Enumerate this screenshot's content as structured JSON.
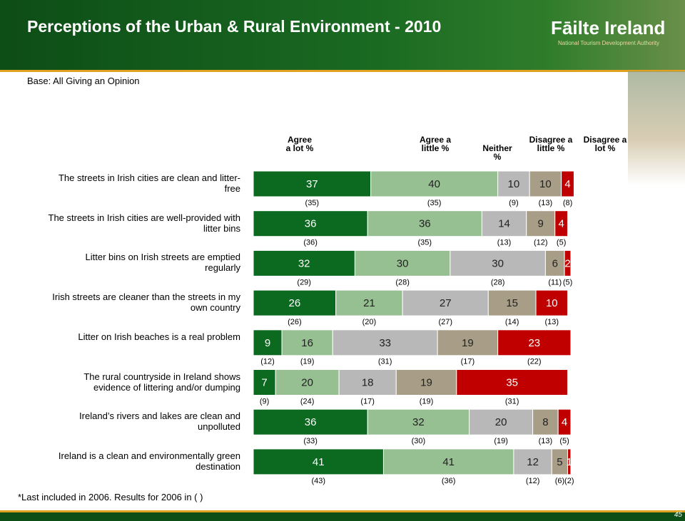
{
  "header": {
    "title": "Perceptions of the Urban & Rural Environment - 2010",
    "logo": "Fāilte Ireland",
    "logo_subtitle": "National Tourism Development Authority"
  },
  "base_note": "Base: All Giving an Opinion",
  "chart_data": {
    "type": "stacked-bar-horizontal",
    "categories": [
      "The streets in Irish cities are clean and litter-free",
      "The streets in Irish cities are well-provided with litter bins",
      "Litter bins on Irish streets are emptied regularly",
      "Irish streets are cleaner than the streets in my own country",
      "Litter on Irish beaches is a real problem",
      "The rural countryside in Ireland shows evidence of littering and/or dumping",
      "Ireland’s rivers and lakes are clean and unpolluted",
      "Ireland is a clean and environmentally green destination"
    ],
    "series": [
      {
        "name": "Agree a lot %",
        "color": "#0b6a1f",
        "values": [
          37,
          36,
          32,
          26,
          9,
          7,
          36,
          41
        ],
        "previous_labels": [
          "(35)",
          "(36)",
          "(29)",
          "(26)",
          "(12)",
          "(9)",
          "(33)",
          "(43)"
        ]
      },
      {
        "name": "Agree a little %",
        "color": "#96bf92",
        "values": [
          40,
          36,
          30,
          21,
          16,
          20,
          32,
          41
        ],
        "previous_labels": [
          "(35)",
          "(35)",
          "(28)",
          "(20)",
          "(19)",
          "(24)",
          "(30)",
          "(36)"
        ]
      },
      {
        "name": "Neither %",
        "color": "#b8b8b8",
        "values": [
          10,
          14,
          30,
          27,
          33,
          18,
          20,
          12
        ],
        "previous_labels": [
          "(9)",
          "(13)",
          "(28)",
          "(27)",
          "(31)",
          "(17)",
          "(19)",
          "(12)"
        ]
      },
      {
        "name": "Disagree a little %",
        "color": "#a89e88",
        "values": [
          10,
          9,
          6,
          15,
          19,
          19,
          8,
          5
        ],
        "previous_labels": [
          "(13)",
          "(12)",
          "(11)",
          "(14)",
          "(17)",
          "(19)",
          "(13)",
          "(6)"
        ]
      },
      {
        "name": "Disagree a lot %",
        "color": "#c00000",
        "values": [
          4,
          4,
          2,
          10,
          23,
          35,
          4,
          1
        ],
        "previous_labels": [
          "(8)",
          "(5)",
          "(5)",
          "(13)",
          "(22)",
          "(31)",
          "(5)",
          "(2)"
        ]
      }
    ]
  },
  "footnote": "*Last included in 2006.  Results for 2006 in ( )",
  "page_number": "45"
}
